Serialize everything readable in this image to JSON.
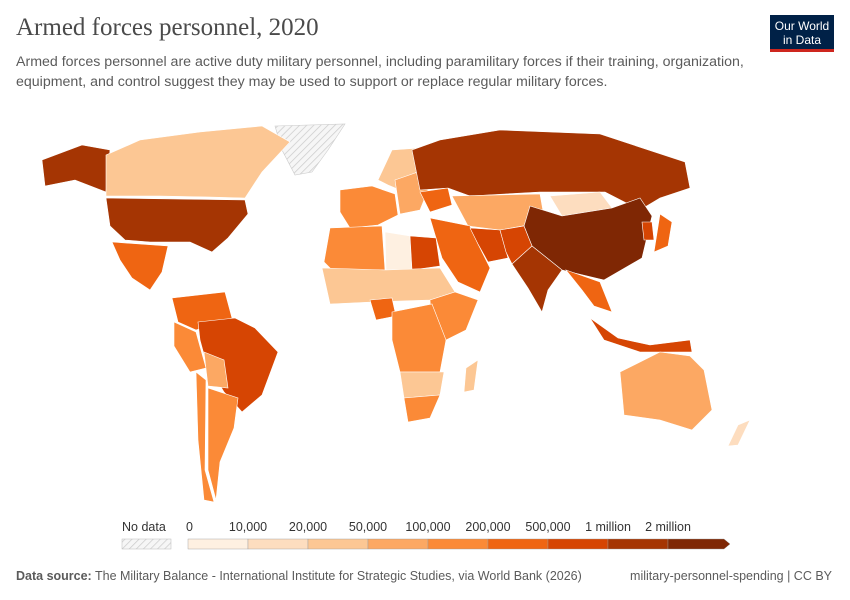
{
  "header": {
    "title": "Armed forces personnel, 2020",
    "subtitle": "Armed forces personnel are active duty military personnel, including paramilitary forces if their training, organization, equipment, and control suggest they may be used to support or replace regular military forces.",
    "logo_line1": "Our World",
    "logo_line2": "in Data"
  },
  "legend": {
    "no_data_label": "No data",
    "bins": [
      {
        "label": "0",
        "color": "#fef0e1"
      },
      {
        "label": "10,000",
        "color": "#fdddbf"
      },
      {
        "label": "20,000",
        "color": "#fcc794"
      },
      {
        "label": "50,000",
        "color": "#fca863"
      },
      {
        "label": "100,000",
        "color": "#fb8a37"
      },
      {
        "label": "200,000",
        "color": "#ef6512"
      },
      {
        "label": "500,000",
        "color": "#d64503"
      },
      {
        "label": "1 million",
        "color": "#a53503"
      },
      {
        "label": "2 million",
        "color": "#7f2704"
      }
    ]
  },
  "map_bins": {
    "alaska": 7,
    "canada": 2,
    "usa": 7,
    "mexico": 5,
    "greenland": -1,
    "colombia-venezuela": 5,
    "peru": 4,
    "brazil": 6,
    "bolivia": 3,
    "argentina": 4,
    "chile": 4,
    "europe-west": 4,
    "europe-east": 3,
    "scandinavia": 2,
    "ukraine": 5,
    "russia": 7,
    "central-asia": 3,
    "mongolia": 1,
    "china": 8,
    "korea": 6,
    "japan": 5,
    "india": 7,
    "middle-east": 5,
    "iran": 6,
    "pakistan": 6,
    "north-africa": 4,
    "egypt": 6,
    "libya": 0,
    "sahel": 2,
    "nigeria": 5,
    "east-africa": 4,
    "central-africa": 4,
    "southern-africa": 2,
    "south-africa": 4,
    "madagascar": 2,
    "se-asia": 5,
    "indonesia": 6,
    "australia": 3,
    "new-zealand": 1
  },
  "footer": {
    "source_label": "Data source:",
    "source": "The Military Balance - International Institute for Strategic Studies, via World Bank (2026)",
    "slug": "military-personnel-spending | CC BY"
  }
}
